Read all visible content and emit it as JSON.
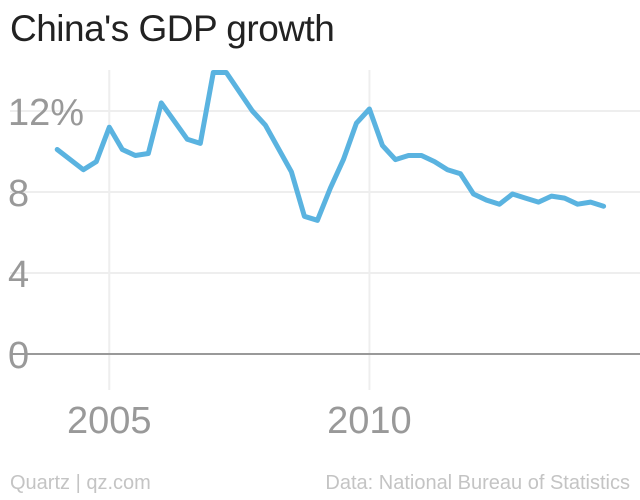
{
  "title": "China's GDP growth",
  "footer": {
    "credit": "Quartz | qz.com",
    "source": "Data: National Bureau of Statistics"
  },
  "colors": {
    "line": "#5ab3e0",
    "axis": "#999999",
    "grid": "#eeeeee",
    "tick_text": "#999999"
  },
  "chart_data": {
    "type": "line",
    "title": "China's GDP growth",
    "xlabel": "",
    "ylabel": "",
    "x_ticks": [
      2005,
      2010
    ],
    "y_ticks": [
      {
        "value": 0,
        "label": "0"
      },
      {
        "value": 4,
        "label": "4"
      },
      {
        "value": 8,
        "label": "8"
      },
      {
        "value": 12,
        "label": "12%"
      }
    ],
    "xlim": [
      2002.9,
      2015.2
    ],
    "ylim": [
      0,
      14
    ],
    "grid": true,
    "series": [
      {
        "name": "",
        "points": [
          [
            2004.0,
            10.1
          ],
          [
            2004.5,
            9.1
          ],
          [
            2004.75,
            9.5
          ],
          [
            2005.0,
            11.2
          ],
          [
            2005.25,
            10.1
          ],
          [
            2005.5,
            9.8
          ],
          [
            2005.75,
            9.9
          ],
          [
            2006.0,
            12.4
          ],
          [
            2006.5,
            10.6
          ],
          [
            2006.75,
            10.4
          ],
          [
            2007.0,
            13.9
          ],
          [
            2007.25,
            13.9
          ],
          [
            2007.75,
            12.0
          ],
          [
            2008.0,
            11.3
          ],
          [
            2008.5,
            9.0
          ],
          [
            2008.75,
            6.8
          ],
          [
            2009.0,
            6.6
          ],
          [
            2009.25,
            8.2
          ],
          [
            2009.5,
            9.6
          ],
          [
            2009.75,
            11.4
          ],
          [
            2010.0,
            12.1
          ],
          [
            2010.25,
            10.3
          ],
          [
            2010.5,
            9.6
          ],
          [
            2010.75,
            9.8
          ],
          [
            2011.0,
            9.8
          ],
          [
            2011.25,
            9.5
          ],
          [
            2011.5,
            9.1
          ],
          [
            2011.75,
            8.9
          ],
          [
            2012.0,
            7.9
          ],
          [
            2012.25,
            7.6
          ],
          [
            2012.5,
            7.4
          ],
          [
            2012.75,
            7.9
          ],
          [
            2013.0,
            7.7
          ],
          [
            2013.25,
            7.5
          ],
          [
            2013.5,
            7.8
          ],
          [
            2013.75,
            7.7
          ],
          [
            2014.0,
            7.4
          ],
          [
            2014.25,
            7.5
          ],
          [
            2014.5,
            7.3
          ]
        ]
      }
    ]
  }
}
